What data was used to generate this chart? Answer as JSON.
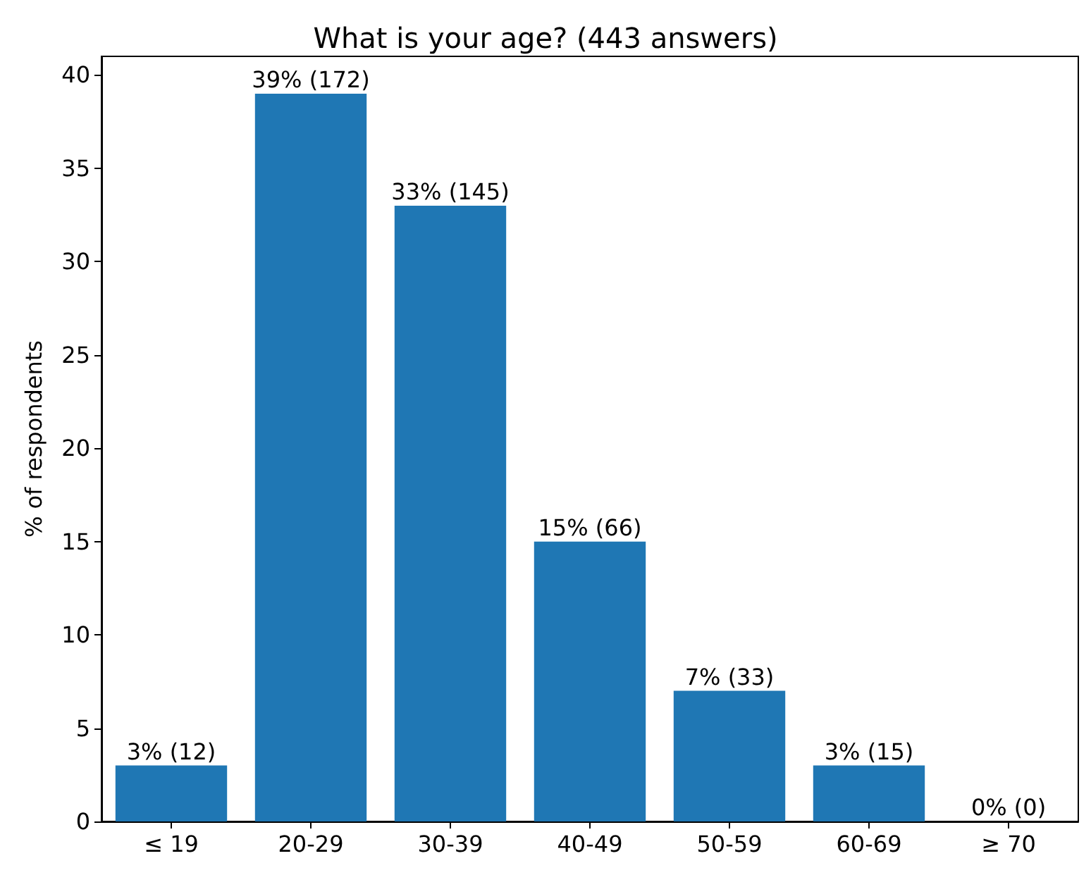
{
  "chart_data": {
    "type": "bar",
    "title": "What is your age? (443 answers)",
    "ylabel": "% of respondents",
    "categories": [
      "≤ 19",
      "20-29",
      "30-39",
      "40-49",
      "50-59",
      "60-69",
      "≥ 70"
    ],
    "values": [
      3,
      39,
      33,
      15,
      7,
      3,
      0
    ],
    "value_labels": [
      "3% (12)",
      "39% (172)",
      "33% (145)",
      "15% (66)",
      "7% (33)",
      "3% (15)",
      "0% (0)"
    ],
    "color": "#1f77b4",
    "ylim": [
      0,
      41
    ],
    "yticks": [
      0,
      5,
      10,
      15,
      20,
      25,
      30,
      35,
      40
    ],
    "grid": false
  }
}
